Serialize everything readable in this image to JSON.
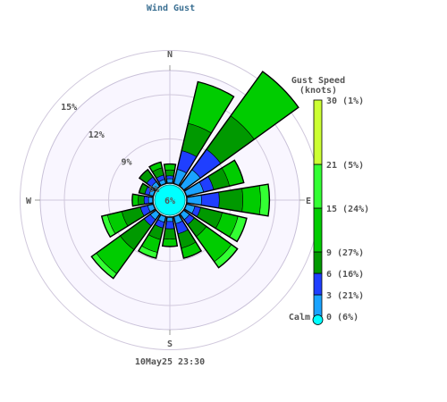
{
  "title": "Wind Gust",
  "timestamp": "10May25 23:30",
  "chart_data": {
    "type": "wind-rose",
    "directions": [
      "N",
      "NNE",
      "NE",
      "ENE",
      "E",
      "ESE",
      "SE",
      "SSE",
      "S",
      "SSW",
      "SW",
      "WSW",
      "W",
      "WNW",
      "NW",
      "NNW"
    ],
    "compass_labels": [
      "N",
      "E",
      "S",
      "W"
    ],
    "ring_percent_ticks": [
      6,
      9,
      12,
      15
    ],
    "ring_labels": [
      "6%",
      "9%",
      "12%",
      "15%"
    ],
    "calm_center_label": "6%",
    "calm_percent": 6,
    "speed_bins": [
      {
        "lower": 0,
        "upper": 3,
        "color": "#1aa3ff"
      },
      {
        "lower": 3,
        "upper": 6,
        "color": "#1f3fff"
      },
      {
        "lower": 6,
        "upper": 9,
        "color": "#009900"
      },
      {
        "lower": 9,
        "upper": 15,
        "color": "#00cc00"
      },
      {
        "lower": 15,
        "upper": 21,
        "color": "#33ff33"
      },
      {
        "lower": 21,
        "upper": 30,
        "color": "#ccff33"
      },
      {
        "lower": 30,
        "upper": 40,
        "color": "#ffff00"
      }
    ],
    "sectors": [
      {
        "dir": "N",
        "cumulative_percent": [
          6.3,
          6.5,
          6.9,
          7.3
        ]
      },
      {
        "dir": "NNE",
        "cumulative_percent": [
          7.0,
          8.3,
          10.2,
          13.1
        ]
      },
      {
        "dir": "NE",
        "cumulative_percent": [
          7.4,
          9.1,
          11.9,
          15.6
        ]
      },
      {
        "dir": "ENE",
        "cumulative_percent": [
          7.2,
          7.9,
          9.0,
          10.0
        ]
      },
      {
        "dir": "E",
        "cumulative_percent": [
          7.0,
          8.2,
          9.8,
          11.0,
          11.6
        ]
      },
      {
        "dir": "ESE",
        "cumulative_percent": [
          6.6,
          7.0,
          8.5,
          9.6,
          10.2
        ]
      },
      {
        "dir": "SE",
        "cumulative_percent": [
          6.5,
          6.9,
          7.9,
          10.0,
          10.5
        ]
      },
      {
        "dir": "SSE",
        "cumulative_percent": [
          6.5,
          7.2,
          8.2,
          8.9
        ]
      },
      {
        "dir": "S",
        "cumulative_percent": [
          6.3,
          6.8,
          7.5,
          8.0
        ]
      },
      {
        "dir": "SSW",
        "cumulative_percent": [
          6.4,
          6.8,
          7.6,
          8.5,
          8.9
        ]
      },
      {
        "dir": "SW",
        "cumulative_percent": [
          6.5,
          7.0,
          9.0,
          11.0,
          11.4
        ]
      },
      {
        "dir": "WSW",
        "cumulative_percent": [
          6.4,
          6.9,
          8.2,
          9.2,
          9.6
        ]
      },
      {
        "dir": "W",
        "cumulative_percent": [
          6.3,
          6.6,
          7.0,
          7.4
        ]
      },
      {
        "dir": "WNW",
        "cumulative_percent": [
          6.3,
          6.6,
          7.0
        ]
      },
      {
        "dir": "NW",
        "cumulative_percent": [
          6.4,
          6.8,
          7.4
        ]
      },
      {
        "dir": "NNW",
        "cumulative_percent": [
          6.3,
          6.6,
          7.1,
          7.5
        ]
      }
    ],
    "legend": {
      "title": "Gust Speed\n(knots)",
      "calm_label": "Calm",
      "entries": [
        {
          "label": "30 (1%)",
          "speed": 30
        },
        {
          "label": "21 (5%)",
          "speed": 21
        },
        {
          "label": "15 (24%)",
          "speed": 15
        },
        {
          "label": "9 (27%)",
          "speed": 9
        },
        {
          "label": "6 (16%)",
          "speed": 6
        },
        {
          "label": "3 (21%)",
          "speed": 3
        },
        {
          "label": "0 (6%)",
          "speed": 0
        }
      ],
      "segments": [
        {
          "from": 0,
          "to": 3,
          "color": "#1aa3ff"
        },
        {
          "from": 3,
          "to": 6,
          "color": "#1f3fff"
        },
        {
          "from": 6,
          "to": 9,
          "color": "#009900"
        },
        {
          "from": 9,
          "to": 15,
          "color": "#00cc00"
        },
        {
          "from": 15,
          "to": 21,
          "color": "#33ff33"
        },
        {
          "from": 21,
          "to": 30,
          "color": "#ccff33"
        }
      ],
      "calm_color": "#00ffff"
    }
  }
}
